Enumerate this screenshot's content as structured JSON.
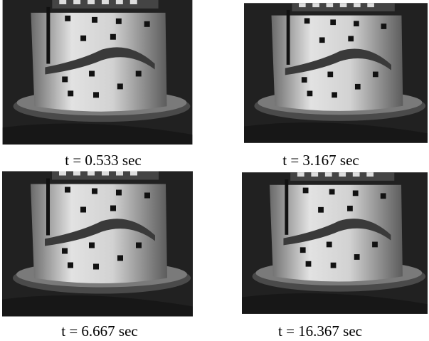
{
  "panels": [
    {
      "caption": "t = 0.533 sec"
    },
    {
      "caption": "t = 3.167 sec"
    },
    {
      "caption": "t = 6.667 sec"
    },
    {
      "caption": "t = 16.367 sec"
    }
  ]
}
